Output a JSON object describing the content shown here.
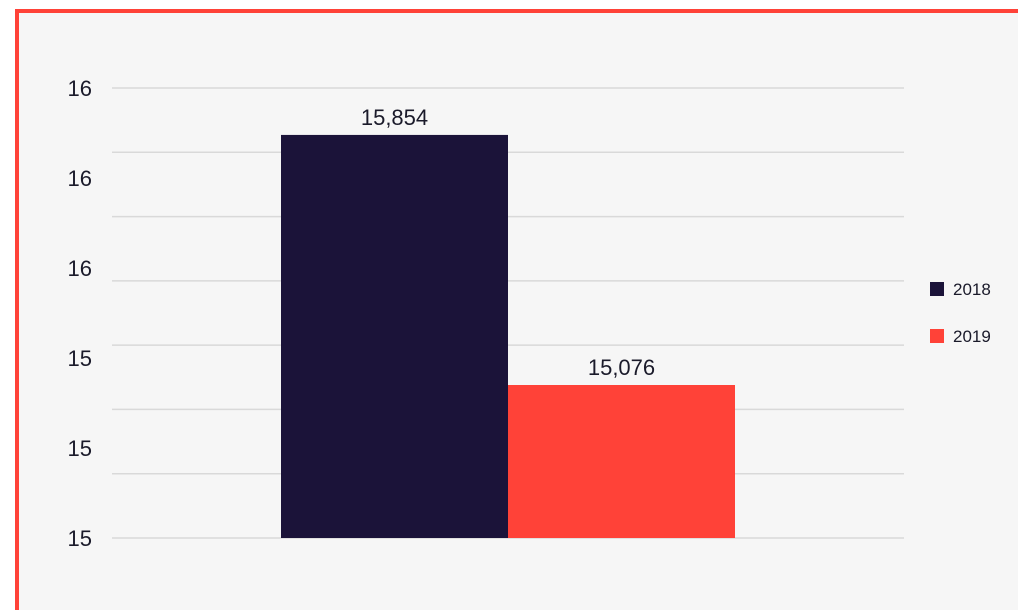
{
  "chart_data": {
    "type": "bar",
    "categories": [
      ""
    ],
    "series": [
      {
        "name": "2018",
        "values": [
          15854
        ],
        "color": "#1b1339"
      },
      {
        "name": "2019",
        "values": [
          15076
        ],
        "color": "#ff4238"
      }
    ],
    "data_labels": [
      "15,854",
      "15,076"
    ],
    "ytick_labels": [
      "16",
      "16",
      "16",
      "15",
      "15",
      "15"
    ],
    "ylim": [
      14600,
      16000
    ],
    "grid": true,
    "legend": "right",
    "frame_color": "#ff4238"
  }
}
